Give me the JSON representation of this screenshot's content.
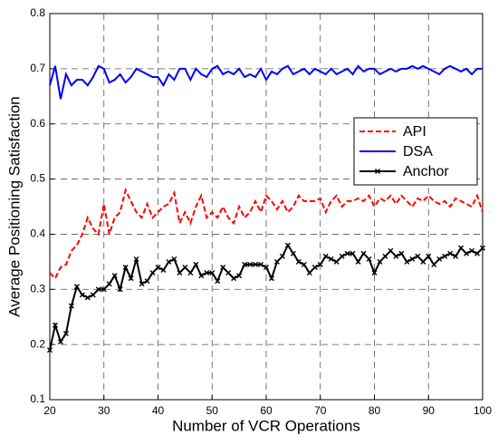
{
  "chart_data": {
    "type": "line",
    "xlabel": "Number of VCR Operations",
    "ylabel": "Average Positioning Satisfaction",
    "x": [
      20,
      21,
      22,
      23,
      24,
      25,
      26,
      27,
      28,
      29,
      30,
      31,
      32,
      33,
      34,
      35,
      36,
      37,
      38,
      39,
      40,
      41,
      42,
      43,
      44,
      45,
      46,
      47,
      48,
      49,
      50,
      51,
      52,
      53,
      54,
      55,
      56,
      57,
      58,
      59,
      60,
      61,
      62,
      63,
      64,
      65,
      66,
      67,
      68,
      69,
      70,
      71,
      72,
      73,
      74,
      75,
      76,
      77,
      78,
      79,
      80,
      81,
      82,
      83,
      84,
      85,
      86,
      87,
      88,
      89,
      90,
      91,
      92,
      93,
      94,
      95,
      96,
      97,
      98,
      99,
      100
    ],
    "series": [
      {
        "name": "API",
        "color": "#ff0000",
        "linestyle": "dashed",
        "values": [
          0.33,
          0.32,
          0.34,
          0.345,
          0.37,
          0.38,
          0.4,
          0.43,
          0.41,
          0.4,
          0.455,
          0.4,
          0.43,
          0.44,
          0.48,
          0.46,
          0.44,
          0.43,
          0.455,
          0.43,
          0.44,
          0.45,
          0.455,
          0.475,
          0.42,
          0.44,
          0.42,
          0.45,
          0.47,
          0.43,
          0.44,
          0.43,
          0.45,
          0.43,
          0.42,
          0.45,
          0.43,
          0.44,
          0.46,
          0.44,
          0.47,
          0.46,
          0.445,
          0.46,
          0.44,
          0.45,
          0.47,
          0.46,
          0.46,
          0.46,
          0.465,
          0.44,
          0.46,
          0.47,
          0.45,
          0.46,
          0.46,
          0.465,
          0.46,
          0.47,
          0.45,
          0.465,
          0.46,
          0.47,
          0.455,
          0.47,
          0.46,
          0.45,
          0.465,
          0.46,
          0.47,
          0.46,
          0.455,
          0.46,
          0.45,
          0.465,
          0.46,
          0.455,
          0.45,
          0.47,
          0.44
        ]
      },
      {
        "name": "DSA",
        "color": "#0000ff",
        "linestyle": "solid",
        "values": [
          0.67,
          0.705,
          0.645,
          0.69,
          0.67,
          0.68,
          0.68,
          0.67,
          0.685,
          0.705,
          0.7,
          0.675,
          0.68,
          0.69,
          0.675,
          0.685,
          0.7,
          0.695,
          0.69,
          0.685,
          0.685,
          0.67,
          0.69,
          0.68,
          0.7,
          0.7,
          0.68,
          0.7,
          0.69,
          0.685,
          0.7,
          0.705,
          0.69,
          0.695,
          0.69,
          0.7,
          0.685,
          0.69,
          0.685,
          0.7,
          0.68,
          0.695,
          0.69,
          0.7,
          0.705,
          0.69,
          0.695,
          0.7,
          0.69,
          0.7,
          0.695,
          0.69,
          0.7,
          0.69,
          0.695,
          0.7,
          0.69,
          0.705,
          0.695,
          0.7,
          0.7,
          0.69,
          0.695,
          0.7,
          0.695,
          0.7,
          0.7,
          0.705,
          0.7,
          0.705,
          0.7,
          0.695,
          0.69,
          0.7,
          0.705,
          0.7,
          0.695,
          0.7,
          0.69,
          0.7,
          0.7
        ]
      },
      {
        "name": "Anchor",
        "color": "#000000",
        "linestyle": "solid",
        "marker": "x",
        "values": [
          0.19,
          0.235,
          0.205,
          0.22,
          0.27,
          0.305,
          0.29,
          0.285,
          0.29,
          0.3,
          0.3,
          0.31,
          0.325,
          0.3,
          0.34,
          0.32,
          0.355,
          0.31,
          0.315,
          0.33,
          0.34,
          0.335,
          0.35,
          0.355,
          0.33,
          0.34,
          0.33,
          0.345,
          0.325,
          0.33,
          0.33,
          0.315,
          0.34,
          0.33,
          0.32,
          0.325,
          0.345,
          0.345,
          0.345,
          0.345,
          0.34,
          0.32,
          0.35,
          0.36,
          0.38,
          0.365,
          0.35,
          0.345,
          0.33,
          0.34,
          0.345,
          0.36,
          0.355,
          0.35,
          0.36,
          0.365,
          0.365,
          0.35,
          0.365,
          0.355,
          0.33,
          0.35,
          0.36,
          0.37,
          0.36,
          0.365,
          0.35,
          0.355,
          0.36,
          0.35,
          0.36,
          0.345,
          0.355,
          0.36,
          0.365,
          0.36,
          0.375,
          0.365,
          0.37,
          0.365,
          0.375
        ]
      }
    ],
    "xlim": [
      20,
      100
    ],
    "xticks": [
      20,
      30,
      40,
      50,
      60,
      70,
      80,
      90,
      100
    ],
    "ylim": [
      0.1,
      0.8
    ],
    "yticks": [
      0.1,
      0.2,
      0.3,
      0.4,
      0.5,
      0.6,
      0.7,
      0.8
    ],
    "grid": true,
    "legend": "right"
  }
}
